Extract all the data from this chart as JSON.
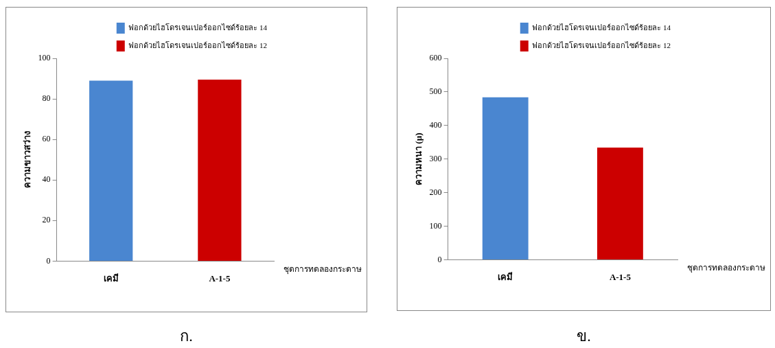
{
  "chart_data": [
    {
      "type": "bar",
      "categories": [
        "เคมี",
        "A-1-5"
      ],
      "ylabel": "ความขาวสว่าง",
      "xlabel": "ชุดการทดลองกระดาษ",
      "ylim": [
        0,
        100
      ],
      "yticks": [
        0,
        20,
        40,
        60,
        80,
        100
      ],
      "grid": false,
      "legend": "top right",
      "series": [
        {
          "name": "ฟอกด้วยไฮโดรเจนเปอร์ออกไซด์ร้อยละ 14",
          "color": "#4a86d0",
          "values": [
            89,
            null
          ]
        },
        {
          "name": "ฟอกด้วยไฮโดรเจนเปอร์ออกไซด์ร้อยละ 12",
          "color": "#cc0000",
          "values": [
            null,
            89.5
          ]
        }
      ],
      "annotations": [
        "ก."
      ]
    },
    {
      "type": "bar",
      "categories": [
        "เคมี",
        "A-1-5"
      ],
      "ylabel": "ความหนา (µ)",
      "xlabel": "ชุดการทดลองกระดาษ",
      "ylim": [
        0,
        600
      ],
      "yticks": [
        0,
        100,
        200,
        300,
        400,
        500,
        600
      ],
      "grid": false,
      "legend": "top right",
      "series": [
        {
          "name": "ฟอกด้วยไฮโดรเจนเปอร์ออกไซด์ร้อยละ 14",
          "color": "#4a86d0",
          "values": [
            484,
            null
          ]
        },
        {
          "name": "ฟอกด้วยไฮโดรเจนเปอร์ออกไซด์ร้อยละ 12",
          "color": "#cc0000",
          "values": [
            null,
            334
          ]
        }
      ],
      "annotations": [
        "ข."
      ]
    }
  ]
}
